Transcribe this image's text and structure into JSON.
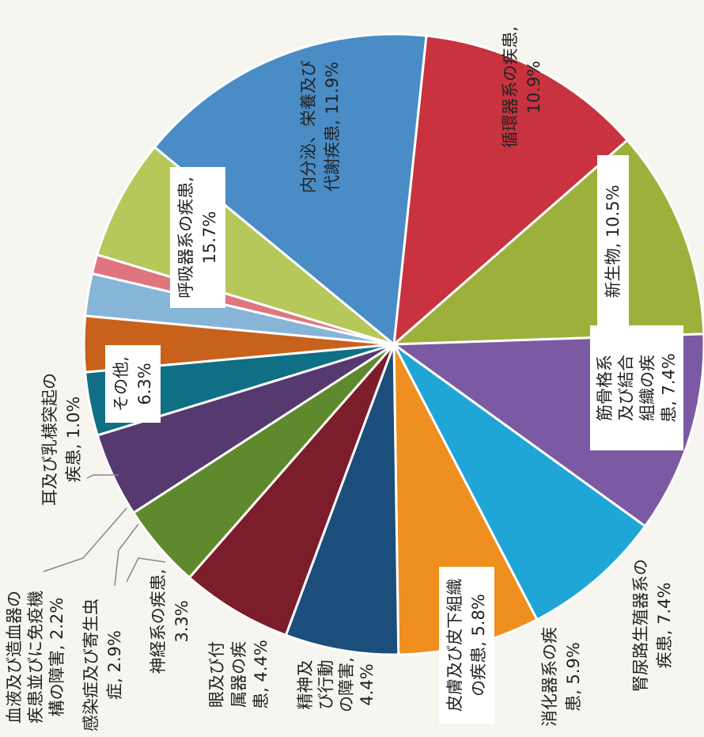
{
  "chart_data": {
    "type": "pie",
    "title": "",
    "unit": "%",
    "slices": [
      {
        "name": "内分泌、栄養及び代謝疾患",
        "value": 11.9,
        "color": "#c8333f",
        "lines": [
          "内分泌、栄養及び",
          "代謝疾患, 11.9%"
        ]
      },
      {
        "name": "循環器系の疾患",
        "value": 10.9,
        "color": "#9bb13b",
        "lines": [
          "循環器系の疾患,",
          "10.9%"
        ]
      },
      {
        "name": "新生物",
        "value": 10.5,
        "color": "#7b5aa3",
        "lines": [
          "新生物, 10.5%"
        ]
      },
      {
        "name": "筋骨格系及び結合組織の疾患",
        "value": 7.4,
        "color": "#1fa6d6",
        "lines": [
          "筋骨格系",
          "及び結合",
          "組織の疾",
          "患, 7.4%"
        ]
      },
      {
        "name": "腎尿路生殖器系の疾患",
        "value": 7.4,
        "color": "#ef8f1f",
        "lines": [
          "腎尿路生殖器系の",
          "疾患, 7.4%"
        ]
      },
      {
        "name": "消化器系の疾患",
        "value": 5.9,
        "color": "#1c4e7c",
        "lines": [
          "消化器系の疾",
          "患, 5.9%"
        ]
      },
      {
        "name": "皮膚及び皮下組織の疾患",
        "value": 5.8,
        "color": "#7c1d2c",
        "lines": [
          "皮膚及び皮下組織",
          "の疾患, 5.8%"
        ]
      },
      {
        "name": "精神及び行動の障害",
        "value": 4.4,
        "color": "#5e8a2d",
        "lines": [
          "精神及",
          "び行動",
          "の障害,",
          "4.4%"
        ]
      },
      {
        "name": "眼及び付属器の疾患",
        "value": 4.4,
        "color": "#55396f",
        "lines": [
          "眼及び付",
          "属器の疾",
          "患, 4.4%"
        ]
      },
      {
        "name": "神経系の疾患",
        "value": 3.3,
        "color": "#0f6f84",
        "lines": [
          "神経系の疾患,",
          "3.3%"
        ]
      },
      {
        "name": "感染症及び寄生虫症",
        "value": 2.9,
        "color": "#c8611c",
        "lines": [
          "感染症及び寄生虫",
          "症, 2.9%"
        ]
      },
      {
        "name": "血液及び造血器の疾患並びに免疫機構の障害",
        "value": 2.2,
        "color": "#87b5d8",
        "lines": [
          "血液及び造血器の",
          "疾患並びに免疫機",
          "構の障害, 2.2%"
        ]
      },
      {
        "name": "耳及び乳様突起の疾患",
        "value": 1.0,
        "color": "#e07580",
        "lines": [
          "耳及び乳様突起の",
          "疾患, 1.0%"
        ]
      },
      {
        "name": "その他",
        "value": 6.3,
        "color": "#b6c85a",
        "lines": [
          "その他,",
          "6.3%"
        ]
      },
      {
        "name": "呼吸器系の疾患",
        "value": 15.7,
        "color": "#4a8cc6",
        "lines": [
          "呼吸器系の疾患,",
          "15.7%"
        ]
      }
    ],
    "legend": "none",
    "label_style": "rotated"
  }
}
